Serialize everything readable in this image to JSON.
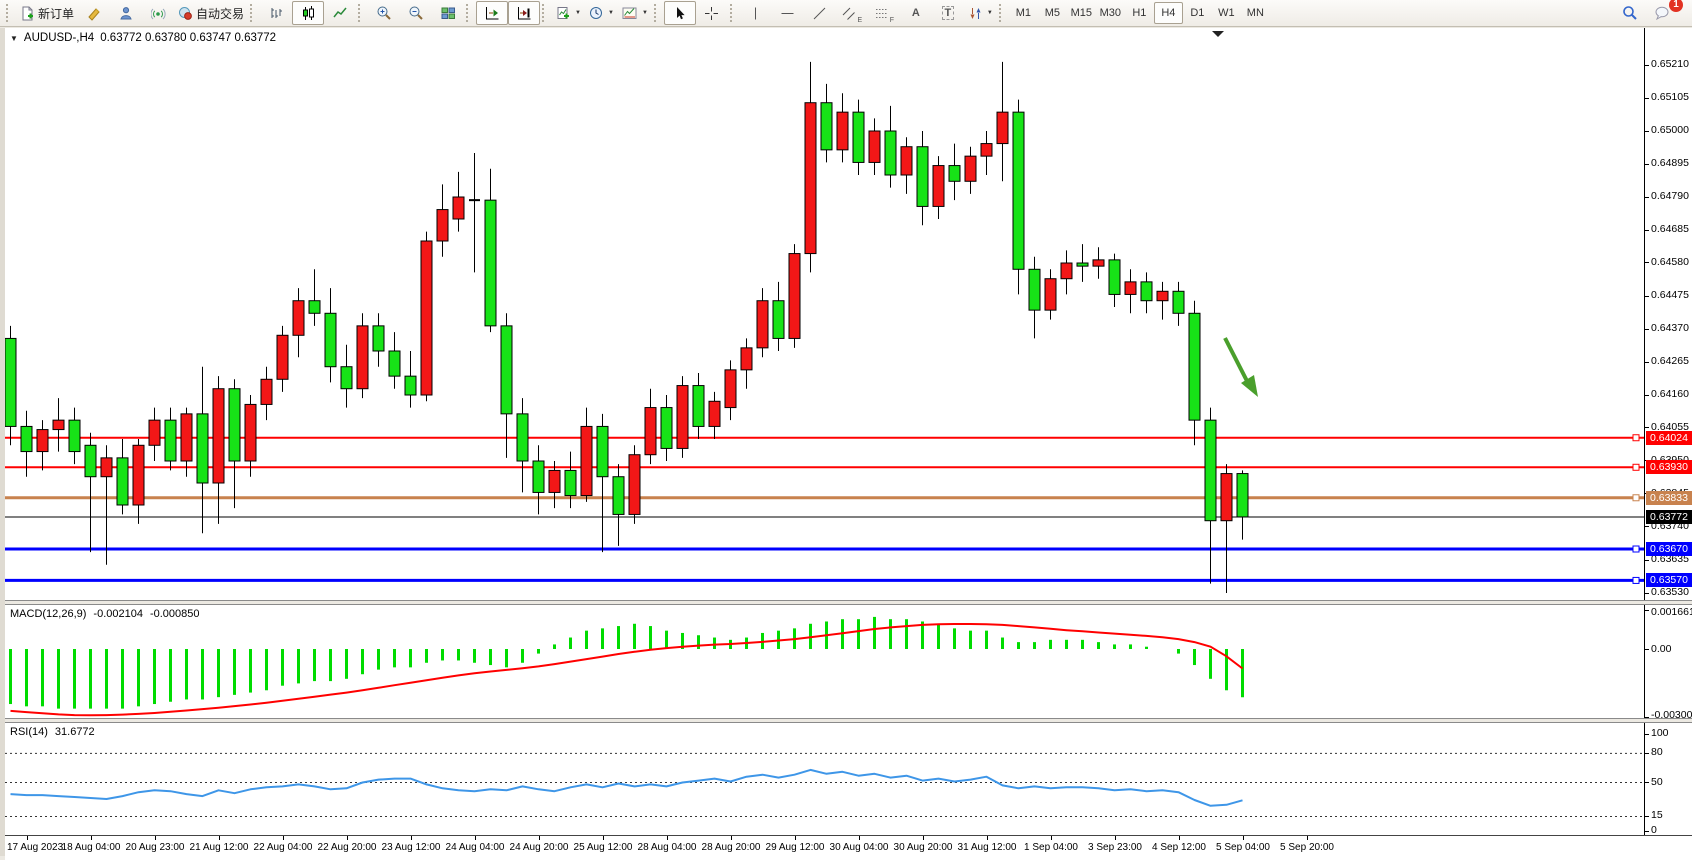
{
  "toolbar": {
    "new_order_label": "新订单",
    "autotrading_label": "自动交易",
    "timeframes": [
      "M1",
      "M5",
      "M15",
      "M30",
      "H1",
      "H4",
      "D1",
      "W1",
      "MN"
    ],
    "active_timeframe": "H4",
    "notification_badge": "1",
    "tools": {
      "text_letter": "A",
      "label_letter": "T",
      "channel_sub": "E",
      "fibo_sub": "F"
    }
  },
  "chart": {
    "title": "AUDUSD-,H4",
    "ohlc": "0.63772 0.63780 0.63747 0.63772",
    "one_click_arrow": "▼"
  },
  "chart_data": {
    "type": "candlestick",
    "symbol": "AUDUSD-",
    "timeframe": "H4",
    "ohlc_display": {
      "open": "0.63772",
      "high": "0.63780",
      "low": "0.63747",
      "close": "0.63772"
    },
    "colors": {
      "bull": "#f31717",
      "bear": "#17e317",
      "wick": "#000000",
      "background": "#ffffff"
    },
    "price_axis": {
      "ticks": [
        "0.65210",
        "0.65105",
        "0.65000",
        "0.64895",
        "0.64790",
        "0.64685",
        "0.64580",
        "0.64475",
        "0.64370",
        "0.64265",
        "0.64160",
        "0.64055",
        "0.63950",
        "0.63845",
        "0.63740",
        "0.63635",
        "0.63530"
      ],
      "tick_step": 0.00105,
      "top_price": 0.6521,
      "bottom_price": 0.6353
    },
    "time_axis": {
      "labels": [
        "17 Aug 2023",
        "18 Aug 04:00",
        "20 Aug 23:00",
        "21 Aug 12:00",
        "22 Aug 04:00",
        "22 Aug 20:00",
        "23 Aug 12:00",
        "24 Aug 04:00",
        "24 Aug 20:00",
        "25 Aug 12:00",
        "28 Aug 04:00",
        "28 Aug 20:00",
        "29 Aug 12:00",
        "30 Aug 04:00",
        "30 Aug 20:00",
        "31 Aug 12:00",
        "1 Sep 04:00",
        "3 Sep 23:00",
        "4 Sep 12:00",
        "5 Sep 04:00",
        "5 Sep 20:00"
      ]
    },
    "candles": [
      [
        0.6434,
        0.6438,
        0.64,
        0.6406
      ],
      [
        0.6406,
        0.6411,
        0.639,
        0.6398
      ],
      [
        0.6398,
        0.6408,
        0.6392,
        0.6405
      ],
      [
        0.6405,
        0.6415,
        0.6398,
        0.6408
      ],
      [
        0.6408,
        0.6412,
        0.6394,
        0.6398
      ],
      [
        0.64,
        0.6404,
        0.6366,
        0.639
      ],
      [
        0.639,
        0.64,
        0.6362,
        0.6396
      ],
      [
        0.6396,
        0.6402,
        0.6378,
        0.6381
      ],
      [
        0.6381,
        0.6402,
        0.6375,
        0.64
      ],
      [
        0.64,
        0.6412,
        0.6395,
        0.6408
      ],
      [
        0.6408,
        0.6412,
        0.6392,
        0.6395
      ],
      [
        0.6395,
        0.6412,
        0.639,
        0.641
      ],
      [
        0.641,
        0.6425,
        0.6372,
        0.6388
      ],
      [
        0.6388,
        0.6422,
        0.6375,
        0.6418
      ],
      [
        0.6418,
        0.6421,
        0.638,
        0.6395
      ],
      [
        0.6395,
        0.6416,
        0.639,
        0.6413
      ],
      [
        0.6413,
        0.6425,
        0.6408,
        0.6421
      ],
      [
        0.6421,
        0.6438,
        0.6417,
        0.6435
      ],
      [
        0.6435,
        0.645,
        0.6428,
        0.6446
      ],
      [
        0.6446,
        0.6456,
        0.6438,
        0.6442
      ],
      [
        0.6442,
        0.645,
        0.642,
        0.6425
      ],
      [
        0.6425,
        0.6432,
        0.6412,
        0.6418
      ],
      [
        0.6418,
        0.6442,
        0.6415,
        0.6438
      ],
      [
        0.6438,
        0.6442,
        0.6425,
        0.643
      ],
      [
        0.643,
        0.6436,
        0.6418,
        0.6422
      ],
      [
        0.6422,
        0.643,
        0.6412,
        0.6416
      ],
      [
        0.6416,
        0.6468,
        0.6414,
        0.6465
      ],
      [
        0.6465,
        0.6483,
        0.646,
        0.6475
      ],
      [
        0.6472,
        0.6487,
        0.6468,
        0.6479
      ],
      [
        0.6478,
        0.6493,
        0.6455,
        0.6478
      ],
      [
        0.6478,
        0.6488,
        0.6436,
        0.6438
      ],
      [
        0.6438,
        0.6442,
        0.6396,
        0.641
      ],
      [
        0.641,
        0.6415,
        0.6385,
        0.6395
      ],
      [
        0.6395,
        0.64,
        0.6378,
        0.6385
      ],
      [
        0.6385,
        0.6395,
        0.638,
        0.6392
      ],
      [
        0.6392,
        0.6398,
        0.638,
        0.6384
      ],
      [
        0.6384,
        0.6412,
        0.6382,
        0.6406
      ],
      [
        0.6406,
        0.641,
        0.6366,
        0.639
      ],
      [
        0.639,
        0.6394,
        0.6368,
        0.6378
      ],
      [
        0.6378,
        0.64,
        0.6375,
        0.6397
      ],
      [
        0.6397,
        0.6418,
        0.6394,
        0.6412
      ],
      [
        0.6412,
        0.6416,
        0.6395,
        0.6399
      ],
      [
        0.6399,
        0.6422,
        0.6396,
        0.6419
      ],
      [
        0.6419,
        0.6423,
        0.6402,
        0.6406
      ],
      [
        0.6406,
        0.6417,
        0.6402,
        0.6414
      ],
      [
        0.6412,
        0.6427,
        0.6408,
        0.6424
      ],
      [
        0.6424,
        0.6434,
        0.6418,
        0.6431
      ],
      [
        0.6431,
        0.645,
        0.6428,
        0.6446
      ],
      [
        0.6446,
        0.6452,
        0.643,
        0.6434
      ],
      [
        0.6434,
        0.6464,
        0.6431,
        0.6461
      ],
      [
        0.6461,
        0.6522,
        0.6455,
        0.6509
      ],
      [
        0.6509,
        0.6515,
        0.649,
        0.6494
      ],
      [
        0.6494,
        0.6512,
        0.649,
        0.6506
      ],
      [
        0.6506,
        0.651,
        0.6486,
        0.649
      ],
      [
        0.649,
        0.6504,
        0.6486,
        0.65
      ],
      [
        0.65,
        0.6508,
        0.6482,
        0.6486
      ],
      [
        0.6486,
        0.6498,
        0.648,
        0.6495
      ],
      [
        0.6495,
        0.65,
        0.647,
        0.6476
      ],
      [
        0.6476,
        0.6492,
        0.6472,
        0.6489
      ],
      [
        0.6489,
        0.6496,
        0.6478,
        0.6484
      ],
      [
        0.6484,
        0.6495,
        0.648,
        0.6492
      ],
      [
        0.6492,
        0.65,
        0.6486,
        0.6496
      ],
      [
        0.6496,
        0.6522,
        0.6484,
        0.6506
      ],
      [
        0.6506,
        0.651,
        0.6448,
        0.6456
      ],
      [
        0.6456,
        0.646,
        0.6434,
        0.6443
      ],
      [
        0.6443,
        0.6456,
        0.644,
        0.6453
      ],
      [
        0.6453,
        0.6462,
        0.6448,
        0.6458
      ],
      [
        0.6458,
        0.6464,
        0.6452,
        0.6457
      ],
      [
        0.6457,
        0.6463,
        0.6453,
        0.6459
      ],
      [
        0.6459,
        0.6461,
        0.6444,
        0.6448
      ],
      [
        0.6448,
        0.6456,
        0.6442,
        0.6452
      ],
      [
        0.6452,
        0.6455,
        0.6442,
        0.6446
      ],
      [
        0.6446,
        0.6452,
        0.644,
        0.6449
      ],
      [
        0.6449,
        0.6452,
        0.6438,
        0.6442
      ],
      [
        0.6442,
        0.6446,
        0.64,
        0.6408
      ],
      [
        0.6408,
        0.6412,
        0.6356,
        0.6376
      ],
      [
        0.6376,
        0.6394,
        0.6353,
        0.6391
      ],
      [
        0.6391,
        0.6392,
        0.637,
        0.63772
      ]
    ],
    "horizontal_lines": [
      {
        "price": 0.64024,
        "label": "0.64024",
        "color": "#ff0000",
        "width": 2
      },
      {
        "price": 0.6393,
        "label": "0.63930",
        "color": "#ff0000",
        "width": 2
      },
      {
        "price": 0.63833,
        "label": "0.63833",
        "color": "#c8824e",
        "width": 3
      },
      {
        "price": 0.6367,
        "label": "0.63670",
        "color": "#0000ff",
        "width": 3
      },
      {
        "price": 0.6357,
        "label": "0.63570",
        "color": "#0000ff",
        "width": 3
      }
    ],
    "bid_line": {
      "price": 0.63772,
      "label": "0.63772",
      "color": "#000000"
    },
    "annotation_arrow": {
      "color": "#4a9f2c",
      "direction": "down-right"
    },
    "indicators": {
      "macd": {
        "label": "MACD(12,26,9)",
        "value": "-0.002104",
        "signal_value": "-0.000850",
        "axis_ticks": [
          "0.001661",
          "0.00",
          "-0.003002"
        ],
        "axis_values": [
          0.001661,
          0,
          -0.003002
        ],
        "colors": {
          "histogram": "#00dc00",
          "signal": "#ff0000"
        },
        "histogram": [
          -0.0024,
          -0.0025,
          -0.0025,
          -0.0026,
          -0.0026,
          -0.0026,
          -0.0026,
          -0.0026,
          -0.0025,
          -0.0024,
          -0.0023,
          -0.0022,
          -0.0022,
          -0.0021,
          -0.002,
          -0.0019,
          -0.0018,
          -0.0016,
          -0.0015,
          -0.0014,
          -0.0014,
          -0.0013,
          -0.0011,
          -0.0009,
          -0.0008,
          -0.0008,
          -0.0006,
          -0.0005,
          -0.0005,
          -0.0006,
          -0.0007,
          -0.0008,
          -0.0006,
          -0.0002,
          0.0002,
          0.0005,
          0.0008,
          0.0009,
          0.001,
          0.0011,
          0.001,
          0.0008,
          0.0007,
          0.0006,
          0.0005,
          0.0004,
          0.0005,
          0.0007,
          0.0008,
          0.0009,
          0.0011,
          0.0012,
          0.0013,
          0.0013,
          0.0014,
          0.0013,
          0.0013,
          0.0012,
          0.0011,
          0.0009,
          0.0008,
          0.0008,
          0.0005,
          0.0003,
          0.0003,
          0.0004,
          0.0004,
          0.0004,
          0.0003,
          0.0002,
          0.0002,
          0.0001,
          0.0,
          -0.0002,
          -0.0007,
          -0.0013,
          -0.0018,
          -0.002104
        ],
        "signal": [
          -0.0027,
          -0.00275,
          -0.0028,
          -0.00285,
          -0.00288,
          -0.00289,
          -0.00288,
          -0.00286,
          -0.00283,
          -0.00279,
          -0.00274,
          -0.00268,
          -0.00262,
          -0.00256,
          -0.00249,
          -0.00242,
          -0.00234,
          -0.00226,
          -0.00217,
          -0.00208,
          -0.00199,
          -0.0019,
          -0.0018,
          -0.00169,
          -0.00158,
          -0.00147,
          -0.00136,
          -0.00125,
          -0.00115,
          -0.00106,
          -0.00098,
          -0.00091,
          -0.00084,
          -0.00076,
          -0.00066,
          -0.00055,
          -0.00044,
          -0.00033,
          -0.00022,
          -0.00012,
          -3e-05,
          4e-05,
          0.0001,
          0.00015,
          0.00019,
          0.00022,
          0.00026,
          0.00031,
          0.00037,
          0.00043,
          0.00051,
          0.0006,
          0.00069,
          0.00078,
          0.00087,
          0.00094,
          0.001,
          0.00105,
          0.00108,
          0.00109,
          0.00109,
          0.00108,
          0.00105,
          0.001,
          0.00094,
          0.00088,
          0.00082,
          0.00077,
          0.00072,
          0.00067,
          0.00062,
          0.00057,
          0.00051,
          0.00043,
          0.0003,
          0.0001,
          -0.00032,
          -0.00085
        ]
      },
      "rsi": {
        "label": "RSI(14)",
        "value": "31.6772",
        "axis_ticks": [
          "100",
          "80",
          "50",
          "15",
          "0"
        ],
        "dashed_levels": [
          80,
          50,
          15
        ],
        "color": "#3e96e8",
        "values": [
          38,
          37,
          37,
          36,
          35,
          34,
          33,
          36,
          40,
          42,
          41,
          38,
          36,
          42,
          39,
          43,
          45,
          46,
          48,
          46,
          43,
          44,
          50,
          53,
          54,
          54,
          48,
          44,
          42,
          41,
          43,
          42,
          46,
          43,
          41,
          45,
          48,
          45,
          49,
          46,
          48,
          46,
          50,
          52,
          54,
          51,
          56,
          58,
          55,
          58,
          63,
          59,
          61,
          57,
          59,
          55,
          57,
          52,
          54,
          51,
          53,
          56,
          47,
          44,
          46,
          44,
          45,
          45,
          44,
          42,
          43,
          41,
          42,
          40,
          32,
          26,
          27,
          31.68
        ]
      }
    }
  }
}
